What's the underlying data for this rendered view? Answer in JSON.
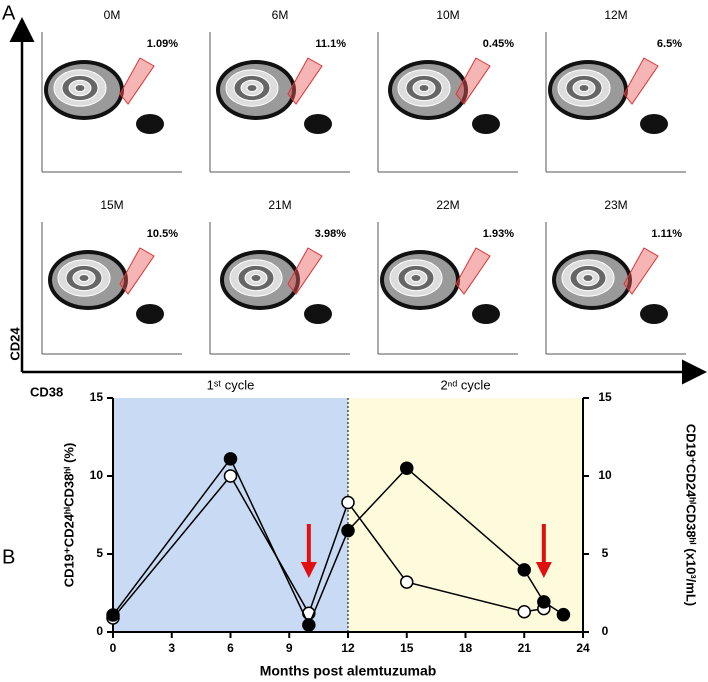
{
  "panel_a": {
    "label": "A",
    "y_label": "CD24",
    "x_label": "CD38",
    "plots": [
      {
        "title": "0M",
        "percent": "1.09%"
      },
      {
        "title": "6M",
        "percent": "11.1%"
      },
      {
        "title": "10M",
        "percent": "0.45%"
      },
      {
        "title": "12M",
        "percent": "6.5%"
      },
      {
        "title": "15M",
        "percent": "10.5%"
      },
      {
        "title": "21M",
        "percent": "3.98%"
      },
      {
        "title": "22M",
        "percent": "1.93%"
      },
      {
        "title": "23M",
        "percent": "1.11%"
      }
    ]
  },
  "chart_data": {
    "type": "line",
    "panel_label": "B",
    "x_label": "Months post alemtuzumab",
    "y_label": "CD19⁺CD24ʰⁱCD38ʰⁱ (%)",
    "y2_label": "CD19⁺CD24ʰⁱCD38ʰⁱ (x10³/mL)",
    "x": [
      0,
      6,
      10,
      12,
      15,
      21,
      22,
      23
    ],
    "series": [
      {
        "color": "#000000",
        "marker": "filled",
        "values": [
          1.09,
          11.1,
          0.45,
          6.5,
          10.5,
          3.98,
          1.93,
          1.11
        ]
      },
      {
        "color": "#000000",
        "marker": "open",
        "axis": "y2",
        "values": [
          0.9,
          10,
          1.2,
          8.3,
          3.2,
          1.3,
          1.5,
          null
        ]
      }
    ],
    "xlim": [
      0,
      24
    ],
    "xticks": [
      0,
      3,
      6,
      9,
      12,
      15,
      18,
      21,
      24
    ],
    "ylim": [
      0,
      15
    ],
    "yticks": [
      0,
      5,
      10,
      15
    ],
    "y2lim": [
      0,
      15
    ],
    "y2ticks": [
      0,
      5,
      10,
      15
    ],
    "regions": [
      {
        "from": 0,
        "to": 12,
        "color": "#c9daf4",
        "label": "1ˢᵗ cycle"
      },
      {
        "from": 12,
        "to": 24,
        "color": "#fdfbdc",
        "label": "2ⁿᵈ cycle"
      }
    ],
    "divider_x": 12,
    "arrows_x": [
      10,
      22
    ],
    "arrow_color": "#e01010"
  }
}
